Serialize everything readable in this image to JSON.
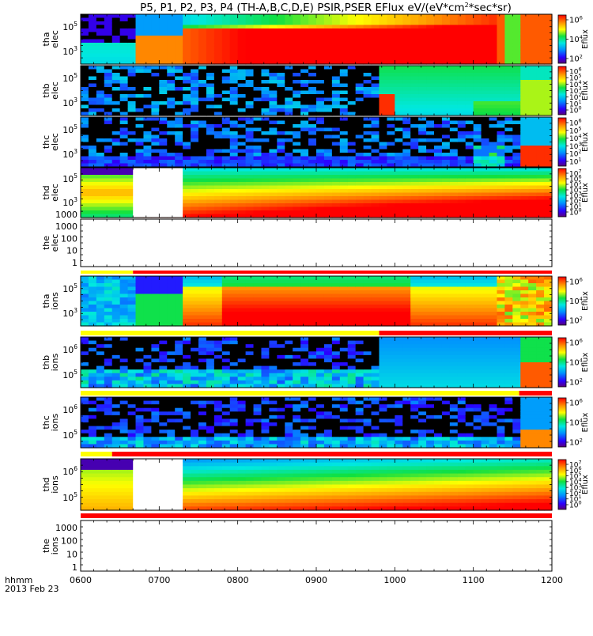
{
  "title": "P5, P1, P2, P3, P4 (TH-A,B,C,D,E) PSIR,PSER EFlux eV/(eV*cm",
  "title_sup": "2",
  "title_tail": "*sec*sr)",
  "xaxis": {
    "ticks": [
      "0600",
      "0700",
      "0800",
      "0900",
      "1000",
      "1100",
      "1200"
    ],
    "label": "hhmm",
    "date": "2013 Feb 23"
  },
  "colorbar_label": "Eflux",
  "colors": {
    "red": "#ff0000",
    "yellow": "#ffff00",
    "black": "#000000",
    "white": "#ffffff"
  },
  "chart_data": {
    "type": "heatmap",
    "x_range_hhmm": [
      "0600",
      "1200"
    ],
    "panels": [
      {
        "name": "tha_elec",
        "ylabel": [
          "tha",
          "elec"
        ],
        "yticks": [
          {
            "b": "10",
            "e": "5"
          },
          {
            "b": "10",
            "e": "3"
          }
        ],
        "cbar_ticks": [
          {
            "b": "10",
            "e": "6"
          },
          {
            "b": "10",
            "e": "4"
          },
          {
            "b": "10",
            "e": "2"
          }
        ],
        "gap_minutes": []
      },
      {
        "name": "thb_elec",
        "ylabel": [
          "thb",
          "elec"
        ],
        "yticks": [
          {
            "b": "10",
            "e": "5"
          },
          {
            "b": "10",
            "e": "3"
          }
        ],
        "cbar_ticks": [
          {
            "b": "10",
            "e": "6"
          },
          {
            "b": "10",
            "e": "5"
          },
          {
            "b": "10",
            "e": "4"
          },
          {
            "b": "10",
            "e": "3"
          },
          {
            "b": "10",
            "e": "2"
          },
          {
            "b": "10",
            "e": "1"
          },
          {
            "b": "10",
            "e": "0"
          }
        ],
        "gap_minutes": []
      },
      {
        "name": "thc_elec",
        "ylabel": [
          "thc",
          "elec"
        ],
        "yticks": [
          {
            "b": "10",
            "e": "5"
          },
          {
            "b": "10",
            "e": "3"
          }
        ],
        "cbar_ticks": [
          {
            "b": "10",
            "e": "6"
          },
          {
            "b": "10",
            "e": "5"
          },
          {
            "b": "10",
            "e": "4"
          },
          {
            "b": "10",
            "e": "3"
          },
          {
            "b": "10",
            "e": "2"
          },
          {
            "b": "10",
            "e": "1"
          }
        ],
        "gap_minutes": []
      },
      {
        "name": "thd_elec",
        "ylabel": [
          "thd",
          "elec"
        ],
        "yticks": [
          {
            "b": "10",
            "e": "5"
          },
          {
            "b": "10",
            "e": "3"
          },
          {
            "b": "1000",
            "e": ""
          }
        ],
        "cbar_ticks": [
          {
            "b": "10",
            "e": "7"
          },
          {
            "b": "10",
            "e": "6"
          },
          {
            "b": "10",
            "e": "5"
          },
          {
            "b": "10",
            "e": "4"
          },
          {
            "b": "10",
            "e": "3"
          },
          {
            "b": "10",
            "e": "2"
          },
          {
            "b": "10",
            "e": "1"
          },
          {
            "b": "10",
            "e": "0"
          }
        ],
        "gap_minutes": [
          [
            40,
            78
          ]
        ]
      },
      {
        "name": "the_elec",
        "ylabel": [
          "the",
          "elec"
        ],
        "yticks": [
          {
            "b": "1000",
            "e": ""
          },
          {
            "b": "100",
            "e": ""
          },
          {
            "b": "10",
            "e": ""
          },
          {
            "b": "1",
            "e": ""
          }
        ],
        "cbar_ticks": [],
        "empty": true
      },
      {
        "name": "tha_ions",
        "ylabel": [
          "tha",
          "ions"
        ],
        "yticks": [
          {
            "b": "10",
            "e": "5"
          },
          {
            "b": "10",
            "e": "3"
          }
        ],
        "cbar_ticks": [
          {
            "b": "10",
            "e": "6"
          },
          {
            "b": "10",
            "e": "4"
          },
          {
            "b": "10",
            "e": "2"
          }
        ],
        "gap_minutes": []
      },
      {
        "name": "thb_ions",
        "ylabel": [
          "thb",
          "ions"
        ],
        "yticks": [
          {
            "b": "10",
            "e": "6"
          },
          {
            "b": "10",
            "e": "5"
          }
        ],
        "cbar_ticks": [
          {
            "b": "10",
            "e": "6"
          },
          {
            "b": "10",
            "e": "4"
          },
          {
            "b": "10",
            "e": "2"
          }
        ],
        "gap_minutes": []
      },
      {
        "name": "thc_ions",
        "ylabel": [
          "thc",
          "ions"
        ],
        "yticks": [
          {
            "b": "10",
            "e": "6"
          },
          {
            "b": "10",
            "e": "5"
          }
        ],
        "cbar_ticks": [
          {
            "b": "10",
            "e": "6"
          },
          {
            "b": "10",
            "e": "4"
          },
          {
            "b": "10",
            "e": "2"
          }
        ],
        "gap_minutes": []
      },
      {
        "name": "thd_ions",
        "ylabel": [
          "thd",
          "ions"
        ],
        "yticks": [
          {
            "b": "10",
            "e": "6"
          },
          {
            "b": "10",
            "e": "5"
          }
        ],
        "cbar_ticks": [
          {
            "b": "10",
            "e": "7"
          },
          {
            "b": "10",
            "e": "6"
          },
          {
            "b": "10",
            "e": "5"
          },
          {
            "b": "10",
            "e": "4"
          },
          {
            "b": "10",
            "e": "3"
          },
          {
            "b": "10",
            "e": "2"
          },
          {
            "b": "10",
            "e": "1"
          },
          {
            "b": "10",
            "e": "0"
          }
        ],
        "gap_minutes": [
          [
            40,
            78
          ]
        ]
      },
      {
        "name": "the_ions",
        "ylabel": [
          "the",
          "ions"
        ],
        "yticks": [
          {
            "b": "1000",
            "e": ""
          },
          {
            "b": "100",
            "e": ""
          },
          {
            "b": "10",
            "e": ""
          },
          {
            "b": "1",
            "e": ""
          }
        ],
        "cbar_ticks": [],
        "empty": true
      }
    ],
    "status_bars_minutes": [
      {
        "after": "the_elec",
        "segments": [
          {
            "from": 0,
            "to": 40,
            "color": "yellow"
          },
          {
            "from": 40,
            "to": 360,
            "color": "red"
          }
        ]
      },
      {
        "after": "tha_ions",
        "segments": [
          {
            "from": 0,
            "to": 228,
            "color": "yellow"
          },
          {
            "from": 228,
            "to": 360,
            "color": "red"
          }
        ]
      },
      {
        "after": "thb_ions",
        "segments": [
          {
            "from": 0,
            "to": 335,
            "color": "yellow"
          },
          {
            "from": 335,
            "to": 360,
            "color": "red"
          }
        ]
      },
      {
        "after": "thc_ions",
        "segments": [
          {
            "from": 0,
            "to": 24,
            "color": "yellow"
          },
          {
            "from": 24,
            "to": 360,
            "color": "red"
          }
        ]
      },
      {
        "after": "thd_ions",
        "segments": [
          {
            "from": 0,
            "to": 360,
            "color": "red"
          }
        ]
      }
    ]
  }
}
